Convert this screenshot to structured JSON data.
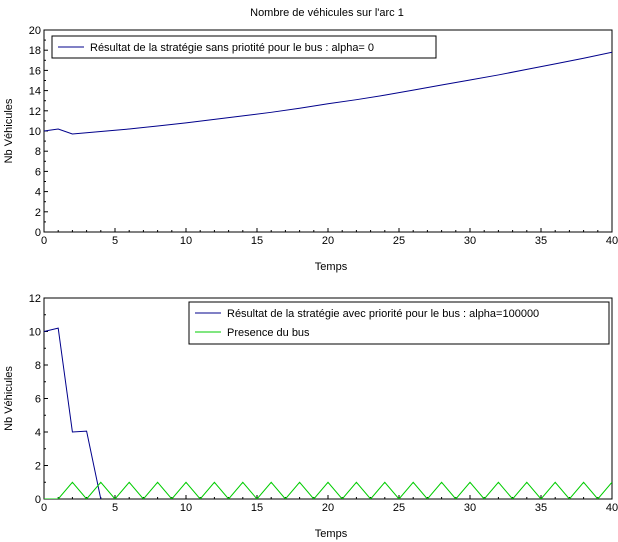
{
  "figure": {
    "title": "Nombre de véhicules sur l'arc 1"
  },
  "chart_data": [
    {
      "type": "line",
      "xlabel": "Temps",
      "ylabel": "Nb Véhicules",
      "xlim": [
        0,
        40
      ],
      "ylim": [
        0,
        20
      ],
      "xticks": [
        0,
        5,
        10,
        15,
        20,
        25,
        30,
        35,
        40
      ],
      "yticks": [
        0,
        2,
        4,
        6,
        8,
        10,
        12,
        14,
        16,
        18,
        20
      ],
      "grid": false,
      "legend_position": "top-left",
      "series": [
        {
          "name": "Résultat de la stratégie sans priotité pour le bus : alpha= 0",
          "color": "#00008b",
          "x": [
            0,
            1,
            2,
            4,
            6,
            8,
            10,
            12,
            14,
            16,
            18,
            20,
            22,
            24,
            26,
            28,
            30,
            32,
            34,
            36,
            38,
            40
          ],
          "y": [
            10.0,
            10.2,
            9.7,
            9.95,
            10.2,
            10.5,
            10.8,
            11.15,
            11.5,
            11.85,
            12.25,
            12.7,
            13.1,
            13.55,
            14.05,
            14.55,
            15.05,
            15.55,
            16.1,
            16.65,
            17.2,
            17.8
          ]
        }
      ]
    },
    {
      "type": "line",
      "xlabel": "Temps",
      "ylabel": "Nb Véhicules",
      "xlim": [
        0,
        40
      ],
      "ylim": [
        0,
        12
      ],
      "xticks": [
        0,
        5,
        10,
        15,
        20,
        25,
        30,
        35,
        40
      ],
      "yticks": [
        0,
        2,
        4,
        6,
        8,
        10,
        12
      ],
      "grid": false,
      "legend_position": "top-right",
      "series": [
        {
          "name": "Résultat de la stratégie avec priorité pour le bus : alpha=100000",
          "color": "#00008b",
          "x": [
            0,
            1,
            2,
            3,
            4
          ],
          "y": [
            10.0,
            10.2,
            4.0,
            4.05,
            0.0
          ]
        },
        {
          "name": "Presence du bus",
          "color": "#00cc00",
          "x": [
            0,
            1,
            2,
            3,
            4,
            5,
            6,
            7,
            8,
            9,
            10,
            11,
            12,
            13,
            14,
            15,
            16,
            17,
            18,
            19,
            20,
            21,
            22,
            23,
            24,
            25,
            26,
            27,
            28,
            29,
            30,
            31,
            32,
            33,
            34,
            35,
            36,
            37,
            38,
            39,
            40
          ],
          "y": [
            0,
            0,
            1,
            0,
            1,
            0,
            1,
            0,
            1,
            0,
            1,
            0,
            1,
            0,
            1,
            0,
            1,
            0,
            1,
            0,
            1,
            0,
            1,
            0,
            1,
            0,
            1,
            0,
            1,
            0,
            1,
            0,
            1,
            0,
            1,
            0,
            1,
            0,
            1,
            0,
            1
          ]
        }
      ]
    }
  ]
}
